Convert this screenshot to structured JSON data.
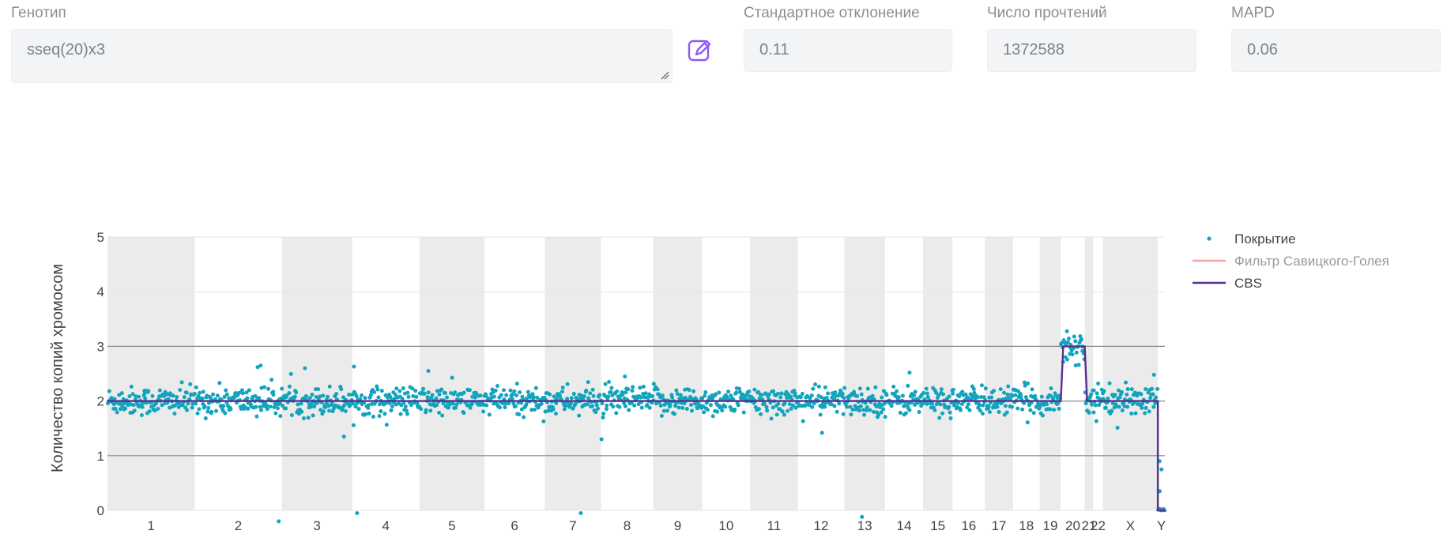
{
  "genotype": {
    "label": "Генотип",
    "value": "sseq(20)x3"
  },
  "stddev": {
    "label": "Стандартное отклонение",
    "value": "0.11"
  },
  "reads": {
    "label": "Число прочтений",
    "value": "1372588"
  },
  "mapd": {
    "label": "MAPD",
    "value": "0.06"
  },
  "icons": {
    "edit": "edit-pencil-icon"
  },
  "colors": {
    "points": "#13a4bd",
    "cbs": "#5b2d8e",
    "savgol": "#f4a5a5",
    "band": "#ebebeb",
    "gridline": "#8a8a8a"
  },
  "chart_data": {
    "type": "scatter",
    "ylabel": "Количество копий хромосом",
    "ylim": [
      0,
      5
    ],
    "yticks": [
      "0",
      "1",
      "2",
      "3",
      "4",
      "5"
    ],
    "grid": true,
    "legend_position": "top-right",
    "chromosomes": [
      "1",
      "2",
      "3",
      "4",
      "5",
      "6",
      "7",
      "8",
      "9",
      "10",
      "11",
      "12",
      "13",
      "14",
      "15",
      "16",
      "17",
      "18",
      "19",
      "20",
      "21",
      "22",
      "X",
      "Y"
    ],
    "chromosome_bins": [
      124,
      124,
      100,
      96,
      92,
      86,
      80,
      74,
      70,
      68,
      68,
      66,
      58,
      54,
      42,
      46,
      40,
      38,
      30,
      34,
      12,
      14,
      78,
      10
    ],
    "shaded_chromosomes": [
      "1",
      "3",
      "5",
      "7",
      "9",
      "11",
      "13",
      "15",
      "17",
      "19",
      "21",
      "X"
    ],
    "baseline_copy_number": 2.0,
    "point_spread_sd": 0.13,
    "outliers": [
      {
        "chromosome": "1",
        "value": 2.05
      },
      {
        "chromosome": "2",
        "value": 2.65
      },
      {
        "chromosome": "2",
        "value": -0.2
      },
      {
        "chromosome": "2",
        "value": 2.62
      },
      {
        "chromosome": "3",
        "value": 1.35
      },
      {
        "chromosome": "3",
        "value": 2.6
      },
      {
        "chromosome": "4",
        "value": 2.63
      },
      {
        "chromosome": "4",
        "value": -0.05
      },
      {
        "chromosome": "5",
        "value": 2.55
      },
      {
        "chromosome": "7",
        "value": -0.05
      },
      {
        "chromosome": "8",
        "value": 1.3
      },
      {
        "chromosome": "8",
        "value": 2.45
      },
      {
        "chromosome": "12",
        "value": 1.42
      },
      {
        "chromosome": "13",
        "value": -0.12
      },
      {
        "chromosome": "14",
        "value": 2.52
      },
      {
        "chromosome": "X",
        "value": 2.48
      },
      {
        "chromosome": "Y",
        "value": 0.75
      },
      {
        "chromosome": "Y",
        "value": 0.35
      },
      {
        "chromosome": "Y",
        "value": 0.9
      }
    ],
    "series": [
      {
        "name": "Покрытие",
        "kind": "points"
      },
      {
        "name": "Фильтр Савицкого-Голея",
        "kind": "line"
      },
      {
        "name": "CBS",
        "kind": "line",
        "segments": [
          {
            "from": "1",
            "to": "19",
            "value": 2.0
          },
          {
            "from": "20",
            "to": "20",
            "value": 3.0
          },
          {
            "from": "21",
            "to": "X",
            "value": 2.0
          },
          {
            "from": "Y",
            "to": "Y",
            "value": 0.0
          }
        ]
      }
    ]
  }
}
